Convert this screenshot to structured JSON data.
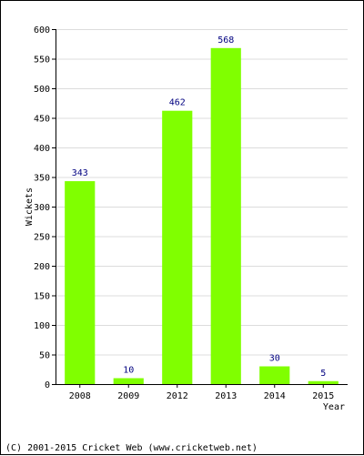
{
  "chart_data": {
    "type": "bar",
    "title": "",
    "xlabel": "Year",
    "ylabel": "Wickets",
    "categories": [
      "2008",
      "2009",
      "2012",
      "2013",
      "2014",
      "2015"
    ],
    "values": [
      343,
      10,
      462,
      568,
      30,
      5
    ],
    "ylim": [
      0,
      600
    ],
    "yticks": [
      0,
      50,
      100,
      150,
      200,
      250,
      300,
      350,
      400,
      450,
      500,
      550,
      600
    ],
    "grid": true,
    "data_labels": true,
    "colors": {
      "bar": "#80ff00",
      "grid": "#dcdcdc",
      "label": "#000080"
    }
  },
  "footer": "(C) 2001-2015 Cricket Web (www.cricketweb.net)"
}
